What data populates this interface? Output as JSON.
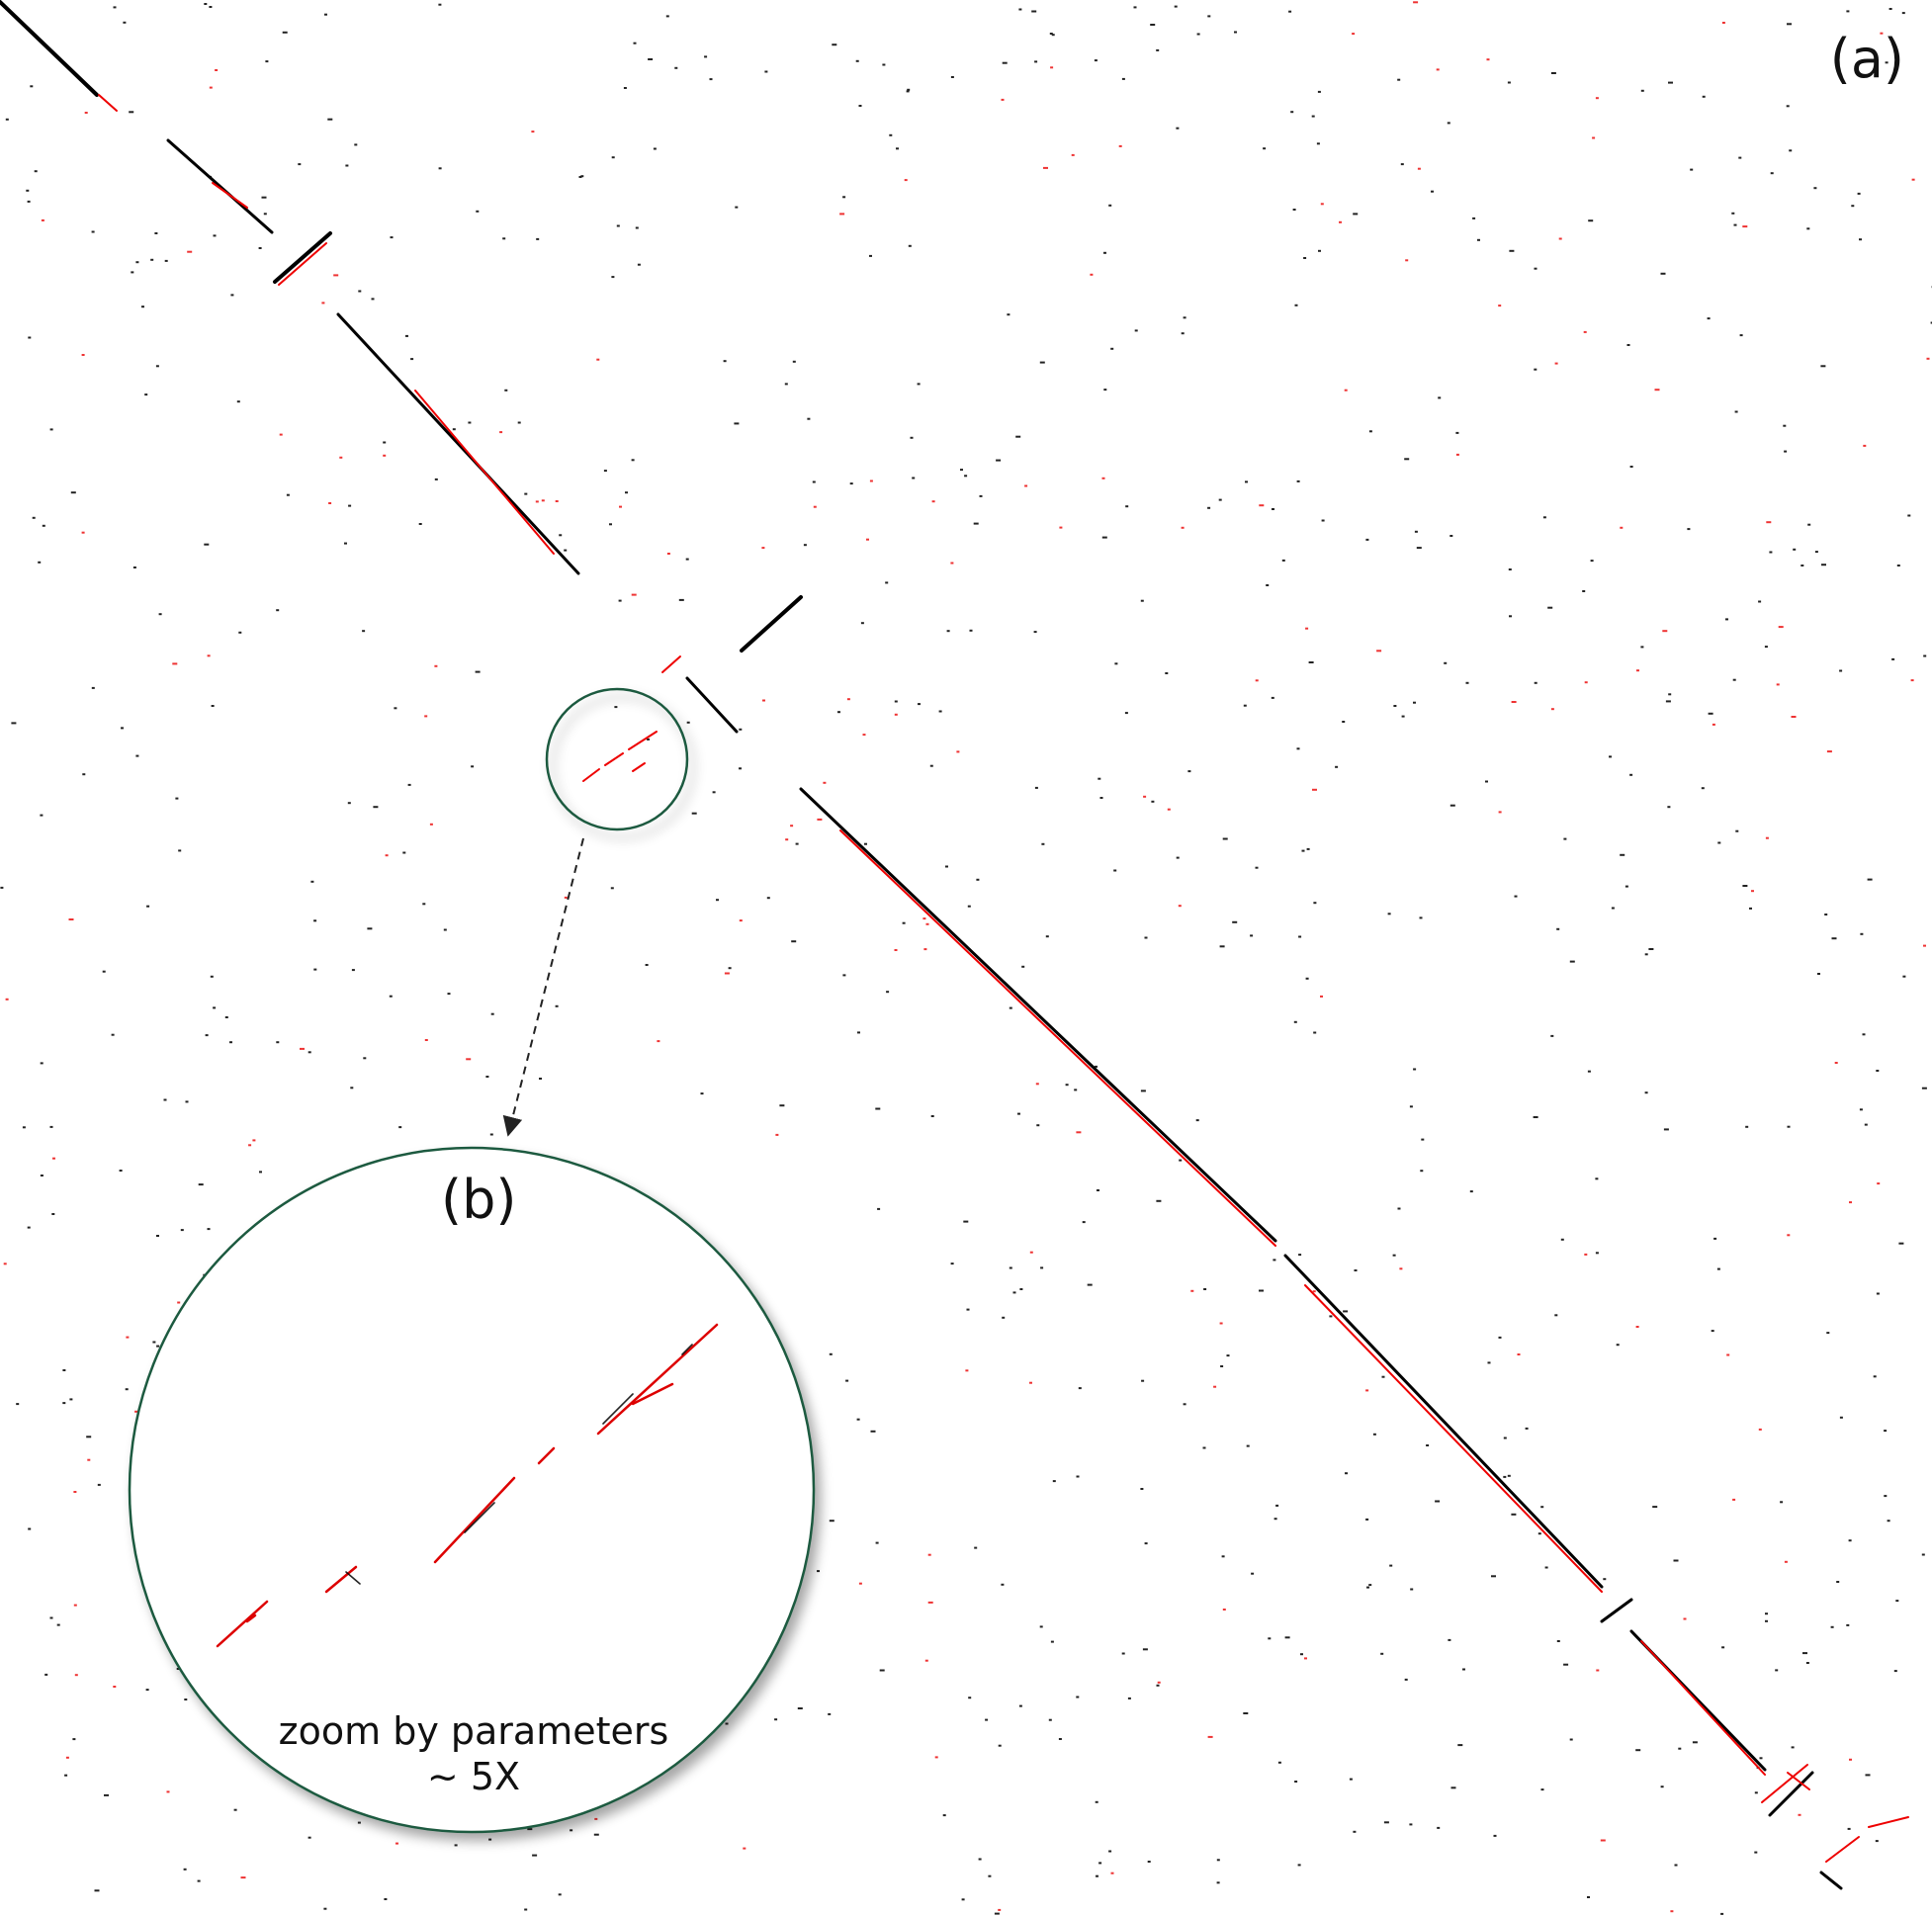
{
  "panels": {
    "a_label": "(a)",
    "b_label": "(b)"
  },
  "zoom_note": {
    "line1": "zoom by parameters",
    "line2": "~ 5X"
  },
  "colors": {
    "diagonal": "#000000",
    "highlight": "#ff0000",
    "circle_border": "#1f5a3f",
    "arrow": "#222222",
    "background": "#ffffff"
  }
}
